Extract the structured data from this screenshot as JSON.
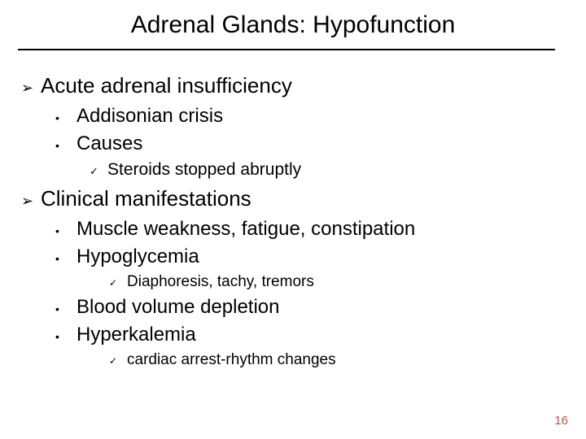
{
  "title": "Adrenal Glands: Hypofunction",
  "page_number": "16",
  "colors": {
    "text": "#000000",
    "background": "#ffffff",
    "rule": "#000000",
    "page_number": "#c0504d"
  },
  "bullets": {
    "l1": "➢",
    "l2": "•",
    "l3": "✓"
  },
  "s1": {
    "heading": "Acute adrenal insufficiency",
    "items": {
      "a": "Addisonian crisis",
      "b": "Causes",
      "b_sub": {
        "a": "Steroids stopped abruptly"
      }
    }
  },
  "s2": {
    "heading": "Clinical manifestations",
    "items": {
      "a": "Muscle weakness, fatigue, constipation",
      "b": "Hypoglycemia",
      "b_sub": {
        "a": "Diaphoresis, tachy, tremors"
      },
      "c": "Blood volume depletion",
      "d": "Hyperkalemia",
      "d_sub": {
        "a": "cardiac arrest-rhythm changes"
      }
    }
  }
}
